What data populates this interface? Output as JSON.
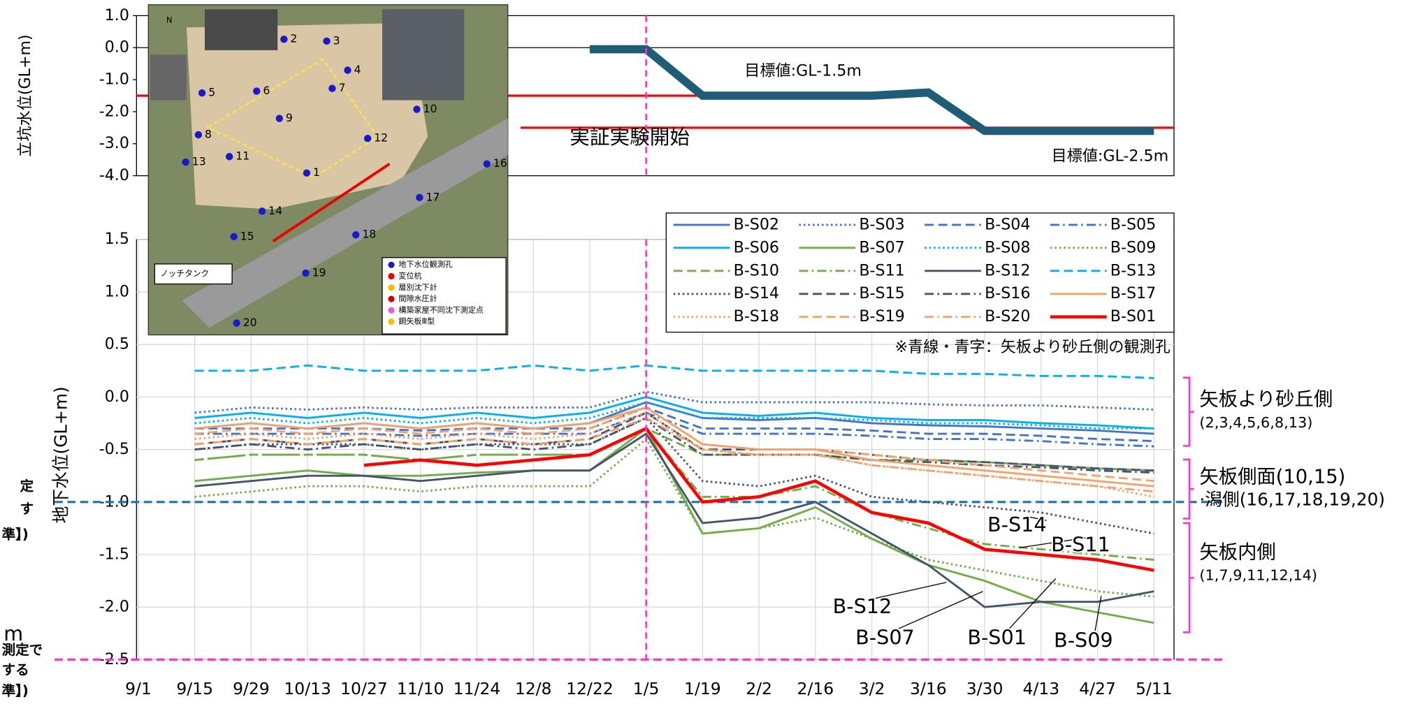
{
  "chart_data": [
    {
      "type": "line",
      "y_label": "立坑水位(GL+m)",
      "categories": [
        "9/1",
        "9/15",
        "9/29",
        "10/13",
        "10/27",
        "11/10",
        "11/24",
        "12/8",
        "12/22",
        "1/5",
        "1/19",
        "2/2",
        "2/16",
        "3/2",
        "3/16",
        "3/30",
        "4/13",
        "4/27",
        "5/11"
      ],
      "ylim": [
        -4,
        1
      ],
      "yticks": [
        {
          "value": 1,
          "label": "1.0"
        },
        {
          "value": 0,
          "label": "0.0"
        },
        {
          "value": -1,
          "label": "-1.0"
        },
        {
          "value": -2,
          "label": "-2.0"
        },
        {
          "value": -3,
          "label": "-3.0"
        },
        {
          "value": -4,
          "label": "-4.0"
        }
      ],
      "series": [
        {
          "color": "#1f5c78",
          "values": [
            null,
            null,
            null,
            null,
            null,
            null,
            null,
            null,
            -0.05,
            -0.05,
            -1.5,
            -1.5,
            -1.5,
            -1.5,
            -1.4,
            -2.6,
            -2.6,
            -2.6,
            -2.6
          ]
        }
      ],
      "target_lines": [
        {
          "value": -1.5,
          "label": "目標値:GL-1.5m",
          "color": "#ff0000"
        },
        {
          "value": -2.5,
          "label": "目標値:GL-2.5m",
          "color": "#ff0000"
        }
      ],
      "annotations": [
        {
          "text": "実証実験開始",
          "color": "#ff33cc"
        }
      ],
      "start_marker": {
        "category": "1/5",
        "color": "#ff33cc"
      }
    },
    {
      "type": "line",
      "y_label": "地下水位(GL+m)",
      "grid": true,
      "categories": [
        "9/1",
        "9/15",
        "9/29",
        "10/13",
        "10/27",
        "11/10",
        "11/24",
        "12/8",
        "12/22",
        "1/5",
        "1/19",
        "2/2",
        "2/16",
        "3/2",
        "3/16",
        "3/30",
        "4/13",
        "4/27",
        "5/11"
      ],
      "ylim": [
        -2.5,
        1.5
      ],
      "yticks": [
        {
          "value": 1.5,
          "label": "1.5"
        },
        {
          "value": 1,
          "label": "1.0"
        },
        {
          "value": 0.5,
          "label": "0.5"
        },
        {
          "value": 0,
          "label": "0.0"
        },
        {
          "value": -0.5,
          "label": "-0.5"
        },
        {
          "value": -1,
          "label": "-1.0"
        },
        {
          "value": -1.5,
          "label": "-1.5"
        },
        {
          "value": -2,
          "label": "-2.0"
        },
        {
          "value": -2.5,
          "label": "-2.5"
        }
      ],
      "series": [
        {
          "name": "B-S02",
          "color": "#4472c4",
          "dash": "solid",
          "label_color": "#4472c4",
          "values": [
            null,
            -0.3,
            -0.25,
            -0.3,
            -0.25,
            -0.3,
            -0.25,
            -0.3,
            -0.25,
            -0.05,
            -0.2,
            -0.22,
            -0.2,
            -0.25,
            -0.27,
            -0.28,
            -0.3,
            -0.32,
            -0.35
          ]
        },
        {
          "name": "B-S03",
          "color": "#4472c4",
          "dash": "dot",
          "label_color": "#4472c4",
          "values": [
            null,
            -0.15,
            -0.1,
            -0.12,
            -0.1,
            -0.12,
            -0.1,
            -0.1,
            -0.1,
            0.05,
            -0.05,
            -0.05,
            -0.05,
            -0.05,
            -0.07,
            -0.08,
            -0.08,
            -0.1,
            -0.12
          ]
        },
        {
          "name": "B-S04",
          "color": "#4472c4",
          "dash": "dash",
          "label_color": "#4472c4",
          "values": [
            null,
            -0.3,
            -0.3,
            -0.3,
            -0.3,
            -0.32,
            -0.3,
            -0.3,
            -0.3,
            -0.1,
            -0.3,
            -0.3,
            -0.3,
            -0.32,
            -0.35,
            -0.35,
            -0.37,
            -0.4,
            -0.42
          ]
        },
        {
          "name": "B-S05",
          "color": "#4472c4",
          "dash": "dashdot",
          "label_color": "#4472c4",
          "values": [
            null,
            -0.35,
            -0.35,
            -0.35,
            -0.35,
            -0.37,
            -0.35,
            -0.35,
            -0.35,
            -0.15,
            -0.35,
            -0.35,
            -0.35,
            -0.37,
            -0.4,
            -0.4,
            -0.42,
            -0.45,
            -0.47
          ]
        },
        {
          "name": "B-S06",
          "color": "#00b0f0",
          "dash": "solid",
          "label_color": "#4472c4",
          "values": [
            null,
            -0.2,
            -0.15,
            -0.2,
            -0.15,
            -0.2,
            -0.15,
            -0.2,
            -0.15,
            0.0,
            -0.15,
            -0.18,
            -0.15,
            -0.2,
            -0.22,
            -0.22,
            -0.25,
            -0.27,
            -0.3
          ]
        },
        {
          "name": "B-S07",
          "color": "#70ad47",
          "dash": "solid",
          "label_color": "#000000",
          "values": [
            null,
            -0.8,
            -0.75,
            -0.7,
            -0.75,
            -0.75,
            -0.72,
            -0.7,
            -0.7,
            -0.3,
            -1.3,
            -1.25,
            -1.05,
            -1.35,
            -1.6,
            -1.75,
            -1.95,
            -2.05,
            -2.15
          ]
        },
        {
          "name": "B-S08",
          "color": "#00b0f0",
          "dash": "dot",
          "label_color": "#4472c4",
          "values": [
            null,
            -0.25,
            -0.2,
            -0.25,
            -0.2,
            -0.25,
            -0.2,
            -0.25,
            -0.2,
            -0.05,
            -0.2,
            -0.2,
            -0.2,
            -0.22,
            -0.25,
            -0.25,
            -0.27,
            -0.3,
            -0.3
          ]
        },
        {
          "name": "B-S09",
          "color": "#70ad47",
          "dash": "dot",
          "label_color": "#000000",
          "values": [
            null,
            -0.95,
            -0.9,
            -0.85,
            -0.85,
            -0.9,
            -0.85,
            -0.85,
            -0.85,
            -0.4,
            -1.3,
            -1.25,
            -1.15,
            -1.35,
            -1.55,
            -1.65,
            -1.75,
            -1.85,
            -1.9
          ]
        },
        {
          "name": "B-S10",
          "color": "#70ad47",
          "dash": "dash",
          "label_color": "#000000",
          "values": [
            null,
            -0.6,
            -0.55,
            -0.55,
            -0.55,
            -0.6,
            -0.55,
            -0.55,
            -0.55,
            -0.3,
            -0.55,
            -0.55,
            -0.55,
            -0.6,
            -0.6,
            -0.62,
            -0.65,
            -0.68,
            -0.7
          ]
        },
        {
          "name": "B-S11",
          "color": "#70ad47",
          "dash": "dashdot",
          "label_color": "#000000",
          "values": [
            null,
            -0.6,
            -0.55,
            -0.55,
            -0.55,
            -0.6,
            -0.55,
            -0.55,
            -0.55,
            -0.3,
            -0.95,
            -0.95,
            -0.85,
            -1.1,
            -1.25,
            -1.4,
            -1.45,
            -1.5,
            -1.55
          ]
        },
        {
          "name": "B-S12",
          "color": "#44546a",
          "dash": "solid",
          "label_color": "#000000",
          "values": [
            null,
            -0.85,
            -0.8,
            -0.75,
            -0.75,
            -0.8,
            -0.75,
            -0.7,
            -0.7,
            -0.35,
            -1.2,
            -1.15,
            -1.0,
            -1.3,
            -1.6,
            -2.0,
            -1.95,
            -1.95,
            -1.85
          ]
        },
        {
          "name": "B-S13",
          "color": "#00b0f0",
          "dash": "dash",
          "label_color": "#4472c4",
          "values": [
            null,
            0.25,
            0.25,
            0.3,
            0.25,
            0.25,
            0.25,
            0.3,
            0.25,
            0.3,
            0.25,
            0.25,
            0.25,
            0.25,
            0.22,
            0.22,
            0.2,
            0.2,
            0.18
          ]
        },
        {
          "name": "B-S14",
          "color": "#44546a",
          "dash": "dot",
          "label_color": "#000000",
          "values": [
            null,
            -0.5,
            -0.45,
            -0.45,
            -0.45,
            -0.5,
            -0.45,
            -0.45,
            -0.45,
            -0.2,
            -0.8,
            -0.85,
            -0.75,
            -0.95,
            -1.0,
            -1.05,
            -1.1,
            -1.2,
            -1.3
          ]
        },
        {
          "name": "B-S15",
          "color": "#44546a",
          "dash": "dash",
          "label_color": "#000000",
          "values": [
            null,
            -0.45,
            -0.4,
            -0.45,
            -0.4,
            -0.45,
            -0.4,
            -0.45,
            -0.4,
            -0.15,
            -0.5,
            -0.5,
            -0.5,
            -0.55,
            -0.6,
            -0.62,
            -0.65,
            -0.68,
            -0.7
          ]
        },
        {
          "name": "B-S16",
          "color": "#44546a",
          "dash": "dashdot",
          "label_color": "#000000",
          "values": [
            null,
            -0.5,
            -0.45,
            -0.5,
            -0.45,
            -0.5,
            -0.45,
            -0.5,
            -0.45,
            -0.2,
            -0.55,
            -0.55,
            -0.55,
            -0.6,
            -0.62,
            -0.65,
            -0.67,
            -0.7,
            -0.72
          ]
        },
        {
          "name": "B-S17",
          "color": "#f4a26b",
          "dash": "solid",
          "label_color": "#000000",
          "values": [
            null,
            -0.3,
            -0.25,
            -0.3,
            -0.25,
            -0.3,
            -0.25,
            -0.3,
            -0.25,
            -0.1,
            -0.45,
            -0.5,
            -0.5,
            -0.6,
            -0.65,
            -0.7,
            -0.75,
            -0.8,
            -0.85
          ]
        },
        {
          "name": "B-S18",
          "color": "#f4a26b",
          "dash": "dot",
          "label_color": "#000000",
          "values": [
            null,
            -0.4,
            -0.35,
            -0.4,
            -0.35,
            -0.4,
            -0.35,
            -0.4,
            -0.35,
            -0.15,
            -0.5,
            -0.55,
            -0.55,
            -0.65,
            -0.7,
            -0.75,
            -0.8,
            -0.85,
            -0.95
          ]
        },
        {
          "name": "B-S19",
          "color": "#f4a26b",
          "dash": "dash",
          "label_color": "#000000",
          "values": [
            null,
            -0.35,
            -0.3,
            -0.35,
            -0.3,
            -0.35,
            -0.3,
            -0.35,
            -0.3,
            -0.1,
            -0.45,
            -0.5,
            -0.5,
            -0.55,
            -0.6,
            -0.65,
            -0.7,
            -0.75,
            -0.8
          ]
        },
        {
          "name": "B-S20",
          "color": "#f4a26b",
          "dash": "dashdot",
          "label_color": "#000000",
          "values": [
            null,
            -0.45,
            -0.4,
            -0.45,
            -0.4,
            -0.45,
            -0.4,
            -0.45,
            -0.4,
            -0.2,
            -0.5,
            -0.55,
            -0.55,
            -0.65,
            -0.7,
            -0.75,
            -0.8,
            -0.85,
            -0.9
          ]
        },
        {
          "name": "B-S01",
          "color": "#ff0000",
          "dash": "solid",
          "width": 3.5,
          "label_color": "#000000",
          "values": [
            null,
            null,
            null,
            null,
            -0.65,
            -0.6,
            -0.65,
            -0.6,
            -0.55,
            -0.3,
            -1.0,
            -0.95,
            -0.8,
            -1.1,
            -1.2,
            -1.45,
            -1.5,
            -1.55,
            -1.65
          ]
        }
      ],
      "reference_lines": [
        {
          "value": -1,
          "color": "#1f77b4"
        },
        {
          "value": -2.5,
          "color": "#ff33cc"
        }
      ],
      "start_marker": {
        "category": "1/5",
        "color": "#ff33cc"
      },
      "legend": "top-right",
      "note": "※青線・青字：矢板より砂丘側の観測孔",
      "line_labels": [
        {
          "text": "B-S14",
          "color": "#7f8c99"
        },
        {
          "text": "B-S11",
          "color": "#70ad47"
        },
        {
          "text": "B-S12",
          "color": "#44546a"
        },
        {
          "text": "B-S07",
          "color": "#70ad47"
        },
        {
          "text": "B-S01",
          "color": "#ff0000"
        },
        {
          "text": "B-S09",
          "color": "#70ad47"
        }
      ],
      "groups": [
        {
          "title": "矢板より砂丘側",
          "members": "(2,3,4,5,6,8,13)"
        },
        {
          "title": "矢板側面(10,15)",
          "members": "·潟側(16,17,18,19,20)"
        },
        {
          "title": "矢板内側",
          "members": "(1,7,9,11,12,14)"
        }
      ],
      "cut_notes": [
        {
          "text": "定",
          "color": "#1f77b4"
        },
        {
          "text": "す",
          "color": "#1f77b4"
        },
        {
          "text": "準】)",
          "color": "#1f77b4"
        },
        {
          "text": "m",
          "color": "#ff33cc"
        },
        {
          "text": "測定で",
          "color": "#ff33cc"
        },
        {
          "text": "する",
          "color": "#ff33cc"
        },
        {
          "text": "準】)",
          "color": "#ff33cc"
        }
      ]
    }
  ],
  "map": {
    "compass": "N",
    "points": [
      "1",
      "2",
      "3",
      "4",
      "5",
      "6",
      "7",
      "8",
      "9",
      "10",
      "11",
      "12",
      "13",
      "14",
      "15",
      "16",
      "17",
      "18",
      "19",
      "20"
    ],
    "tank": "ノッチタンク",
    "legend": [
      "地下水位観測孔",
      "変位杭",
      "層別沈下計",
      "間隙水圧計",
      "構築家屋不同沈下測定点",
      "鋼矢板Ⅲ型"
    ]
  }
}
